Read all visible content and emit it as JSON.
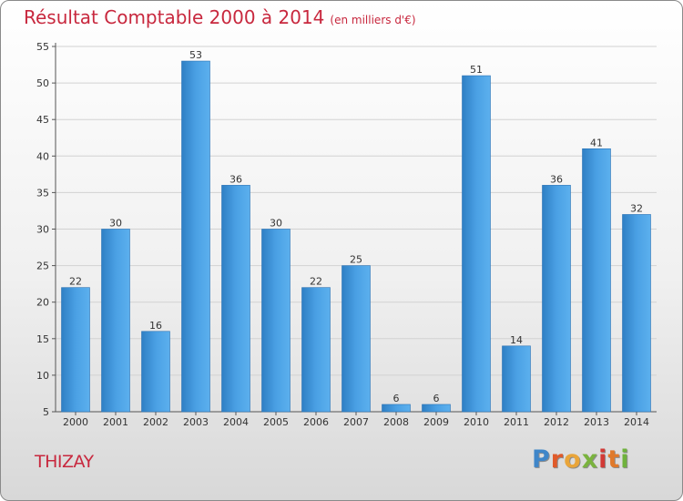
{
  "chart_data": {
    "type": "bar",
    "title": "Résultat Comptable 2000 à 2014",
    "subtitle": "(en milliers d'€)",
    "categories": [
      "2000",
      "2001",
      "2002",
      "2003",
      "2004",
      "2005",
      "2006",
      "2007",
      "2008",
      "2009",
      "2010",
      "2011",
      "2012",
      "2013",
      "2014"
    ],
    "values": [
      22,
      30,
      16,
      53,
      36,
      30,
      22,
      25,
      6,
      6,
      51,
      14,
      36,
      41,
      32
    ],
    "ylim": [
      5,
      55
    ],
    "yticks": [
      5,
      10,
      15,
      20,
      25,
      30,
      35,
      40,
      45,
      50,
      55
    ],
    "xlabel": "",
    "ylabel": "",
    "grid": true,
    "bar_color": "#3a8fd8"
  },
  "footer": {
    "city": "THIZAY",
    "logo_letters": [
      "P",
      "r",
      "o",
      "x",
      "i",
      "t",
      "i"
    ]
  }
}
